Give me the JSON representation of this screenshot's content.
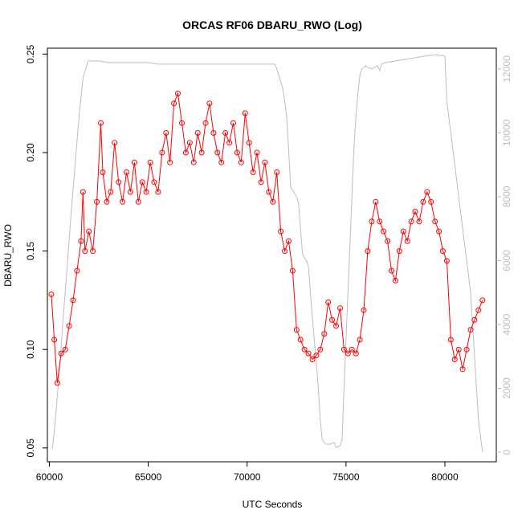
{
  "chart_data": {
    "type": "scatter",
    "title": "ORCAS RF06 DBARU_RWO (Log)",
    "xlabel": "UTC Seconds",
    "ylabel": "DBARU_RWO",
    "xlim": [
      59900,
      82600
    ],
    "ylim": [
      0.043,
      0.253
    ],
    "y2lim": [
      -300,
      12650
    ],
    "y_scale": "linear",
    "x_ticks": [
      60000,
      65000,
      70000,
      75000,
      80000
    ],
    "x_tick_labels": [
      "60000",
      "65000",
      "70000",
      "75000",
      "80000"
    ],
    "y_ticks": [
      0.05,
      0.1,
      0.15,
      0.2,
      0.25
    ],
    "y_tick_labels": [
      "0.05",
      "0.10",
      "0.15",
      "0.20",
      "0.25"
    ],
    "y2_ticks": [
      0,
      2000,
      4000,
      6000,
      8000,
      10000,
      12000
    ],
    "y2_tick_labels": [
      "0",
      "2000",
      "4000",
      "6000",
      "8000",
      "10000",
      "12000"
    ],
    "grid": false,
    "legend": "none",
    "colors": {
      "points": "#ff0000",
      "altitude_line": "#bebebe",
      "axis": "#000000",
      "right_axis": "#bebebe"
    },
    "series": [
      {
        "name": "",
        "role": "DBARU_RWO trace",
        "marker": "open-circle",
        "x": [
          60100,
          60250,
          60400,
          60600,
          60800,
          61000,
          61200,
          61400,
          61600,
          61700,
          61800,
          62000,
          62200,
          62400,
          62600,
          62700,
          62900,
          63100,
          63300,
          63500,
          63700,
          63900,
          64100,
          64300,
          64500,
          64700,
          64900,
          65100,
          65300,
          65500,
          65700,
          65900,
          66100,
          66300,
          66500,
          66700,
          66900,
          67100,
          67300,
          67500,
          67700,
          67900,
          68100,
          68300,
          68500,
          68700,
          68900,
          69100,
          69300,
          69500,
          69700,
          69900,
          70100,
          70300,
          70500,
          70700,
          70900,
          71100,
          71300,
          71500,
          71700,
          71900,
          72100,
          72300,
          72500,
          72700,
          72900,
          73100,
          73300,
          73500,
          73700,
          73900,
          74100,
          74300,
          74500,
          74700,
          74900,
          75100,
          75300,
          75500,
          75700,
          75900,
          76100,
          76300,
          76500,
          76700,
          76900,
          77100,
          77300,
          77500,
          77700,
          77900,
          78100,
          78300,
          78500,
          78700,
          78900,
          79100,
          79300,
          79500,
          79700,
          79900,
          80100,
          80300,
          80500,
          80700,
          80900,
          81100,
          81300,
          81500,
          81700,
          81900
        ],
        "y": [
          0.128,
          0.105,
          0.083,
          0.098,
          0.1,
          0.112,
          0.125,
          0.14,
          0.155,
          0.18,
          0.15,
          0.16,
          0.15,
          0.175,
          0.215,
          0.19,
          0.175,
          0.18,
          0.205,
          0.185,
          0.175,
          0.19,
          0.18,
          0.195,
          0.175,
          0.185,
          0.18,
          0.195,
          0.185,
          0.18,
          0.2,
          0.21,
          0.195,
          0.225,
          0.23,
          0.215,
          0.2,
          0.205,
          0.195,
          0.21,
          0.2,
          0.215,
          0.225,
          0.21,
          0.2,
          0.195,
          0.21,
          0.205,
          0.215,
          0.2,
          0.195,
          0.22,
          0.205,
          0.19,
          0.2,
          0.185,
          0.195,
          0.18,
          0.175,
          0.19,
          0.16,
          0.15,
          0.155,
          0.14,
          0.11,
          0.105,
          0.1,
          0.098,
          0.095,
          0.097,
          0.1,
          0.108,
          0.124,
          0.115,
          0.112,
          0.121,
          0.1,
          0.098,
          0.1,
          0.098,
          0.105,
          0.12,
          0.15,
          0.165,
          0.175,
          0.165,
          0.16,
          0.155,
          0.14,
          0.135,
          0.15,
          0.16,
          0.155,
          0.165,
          0.17,
          0.165,
          0.175,
          0.18,
          0.175,
          0.165,
          0.16,
          0.15,
          0.145,
          0.105,
          0.095,
          0.1,
          0.09,
          0.1,
          0.11,
          0.115,
          0.12,
          0.125
        ]
      },
      {
        "name": "",
        "role": "altitude (right axis)",
        "x": [
          60150,
          60300,
          60500,
          60700,
          60900,
          61100,
          61300,
          61500,
          61700,
          61950,
          62100,
          62500,
          63000,
          63500,
          64000,
          64500,
          65000,
          65500,
          66000,
          66500,
          67000,
          67500,
          68000,
          68500,
          69000,
          69500,
          70000,
          70500,
          71000,
          71400,
          71500,
          71600,
          71700,
          71800,
          71900,
          72000,
          72100,
          72200,
          72300,
          72400,
          72500,
          72600,
          72700,
          72800,
          72900,
          73000,
          73100,
          73200,
          73300,
          73400,
          73500,
          73600,
          73700,
          73800,
          73900,
          74000,
          74200,
          74400,
          74500,
          74700,
          74800,
          74900,
          75000,
          75100,
          75200,
          75300,
          75400,
          75500,
          75600,
          75700,
          75800,
          75900,
          76000,
          76100,
          76300,
          76600,
          76700,
          76800,
          77000,
          77500,
          78000,
          78500,
          79000,
          79500,
          80000,
          80100,
          80300,
          80500,
          80700,
          80900,
          81100,
          81300,
          81500,
          81700,
          81900
        ],
        "y": [
          100,
          1000,
          2500,
          4200,
          5800,
          7500,
          9000,
          10500,
          11700,
          12250,
          12250,
          12250,
          12200,
          12200,
          12200,
          12200,
          12200,
          12150,
          12150,
          12150,
          12150,
          12150,
          12150,
          12150,
          12150,
          12150,
          12150,
          12150,
          12150,
          12150,
          12000,
          11800,
          11600,
          11400,
          11000,
          10500,
          9500,
          8300,
          8200,
          8100,
          8000,
          7800,
          7000,
          6200,
          6100,
          6000,
          5800,
          5000,
          4200,
          3500,
          2800,
          2000,
          1000,
          400,
          300,
          250,
          250,
          300,
          150,
          200,
          400,
          2000,
          3500,
          5000,
          6500,
          8000,
          9500,
          10500,
          11200,
          11800,
          12000,
          12050,
          12100,
          12050,
          12000,
          12100,
          11950,
          12150,
          12200,
          12250,
          12300,
          12350,
          12400,
          12450,
          12400,
          11000,
          10000,
          9000,
          8000,
          7000,
          6000,
          5000,
          3000,
          1000,
          0
        ]
      }
    ]
  }
}
